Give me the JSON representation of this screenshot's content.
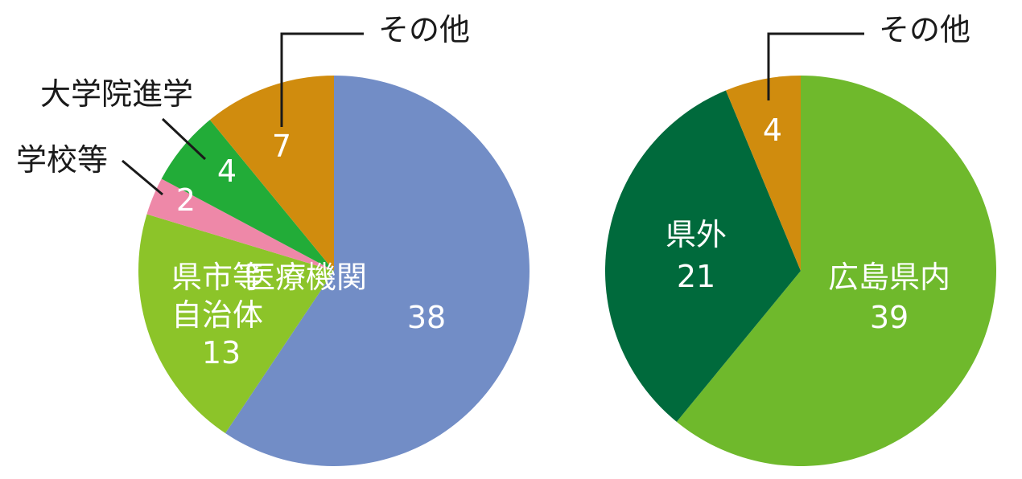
{
  "chart_data": [
    {
      "type": "pie",
      "slices": [
        {
          "label": "医療機関",
          "value": 38,
          "color": "#728dc6"
        },
        {
          "label": "県市等\n自治体",
          "value": 13,
          "color": "#8cc429"
        },
        {
          "label": "学校等",
          "value": 2,
          "color": "#ee88a8"
        },
        {
          "label": "大学院進学",
          "value": 4,
          "color": "#22ac38"
        },
        {
          "label": "その他",
          "value": 7,
          "color": "#d08c0e"
        }
      ]
    },
    {
      "type": "pie",
      "slices": [
        {
          "label": "広島県内",
          "value": 39,
          "color": "#6fb92c"
        },
        {
          "label": "県外",
          "value": 21,
          "color": "#006a3c"
        },
        {
          "label": "その他",
          "value": 4,
          "color": "#d08c0e"
        }
      ]
    }
  ]
}
